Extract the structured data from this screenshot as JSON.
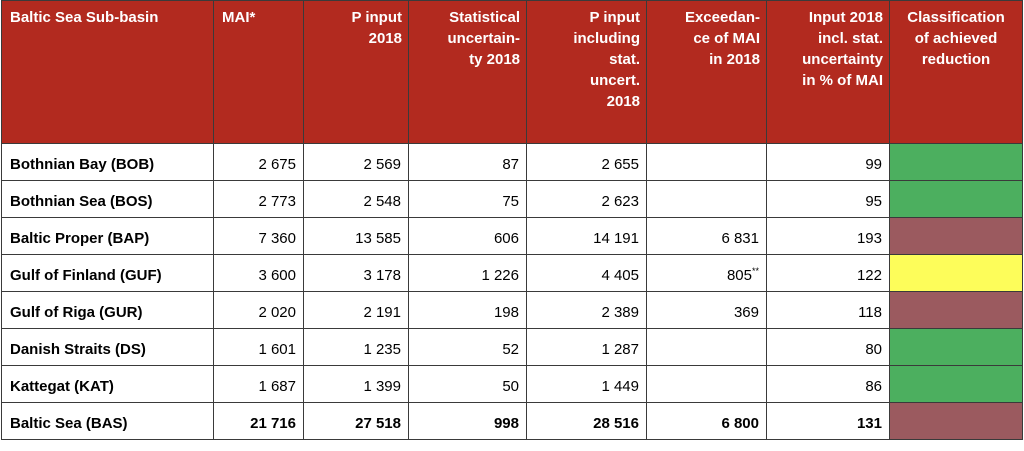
{
  "headers": {
    "subbasin": "Baltic Sea Sub-basin",
    "mai": "MAI*",
    "p_input_l1": "P input",
    "p_input_l2": "2018",
    "stat_l1": "Statistical",
    "stat_l2": "uncertain-",
    "stat_l3": "ty 2018",
    "pinc_l1": "P input",
    "pinc_l2": "including",
    "pinc_l3": "stat.",
    "pinc_l4": "uncert.",
    "pinc_l5": "2018",
    "exc_l1": "Exceedan-",
    "exc_l2": "ce of  MAI",
    "exc_l3": "in 2018",
    "pct_l1": "Input 2018",
    "pct_l2": "incl. stat.",
    "pct_l3": "uncertainty",
    "pct_l4": "in % of MAI",
    "cls_l1": "Classification",
    "cls_l2": "of achieved",
    "cls_l3": "reduction"
  },
  "colors": {
    "header_bg": "#b22a1f",
    "green": "#4caf5f",
    "red": "#9b5a5f",
    "yellow": "#fdfd5a"
  },
  "rows": [
    {
      "name": "Bothnian Bay (BOB)",
      "mai": "2 675",
      "p_input": "2 569",
      "stat": "87",
      "p_incl": "2 655",
      "exceed": "",
      "exceed_note": "",
      "pct": "99",
      "class_color": "#4caf5f"
    },
    {
      "name": "Bothnian Sea (BOS)",
      "mai": "2 773",
      "p_input": "2 548",
      "stat": "75",
      "p_incl": "2 623",
      "exceed": "",
      "exceed_note": "",
      "pct": "95",
      "class_color": "#4caf5f"
    },
    {
      "name": "Baltic Proper (BAP)",
      "mai": "7 360",
      "p_input": "13 585",
      "stat": "606",
      "p_incl": "14 191",
      "exceed": "6 831",
      "exceed_note": "",
      "pct": "193",
      "class_color": "#9b5a5f"
    },
    {
      "name": "Gulf of Finland (GUF)",
      "mai": "3 600",
      "p_input": "3 178",
      "stat": "1 226",
      "p_incl": "4 405",
      "exceed": "805",
      "exceed_note": "**",
      "pct": "122",
      "class_color": "#fdfd5a"
    },
    {
      "name": "Gulf of Riga (GUR)",
      "mai": "2 020",
      "p_input": "2  191",
      "stat": "198",
      "p_incl": "2 389",
      "exceed": "369",
      "exceed_note": "",
      "pct": "118",
      "class_color": "#9b5a5f"
    },
    {
      "name": "Danish Straits (DS)",
      "mai": "1 601",
      "p_input": "1 235",
      "stat": "52",
      "p_incl": "1 287",
      "exceed": "",
      "exceed_note": "",
      "pct": "80",
      "class_color": "#4caf5f"
    },
    {
      "name": "Kattegat (KAT)",
      "mai": "1 687",
      "p_input": "1 399",
      "stat": "50",
      "p_incl": "1 449",
      "exceed": "",
      "exceed_note": "",
      "pct": "86",
      "class_color": "#4caf5f"
    },
    {
      "name": "Baltic Sea (BAS)",
      "mai": "21 716",
      "p_input": "27 518",
      "stat": "998",
      "p_incl": "28 516",
      "exceed": "6 800",
      "exceed_note": "",
      "pct": "131",
      "class_color": "#9b5a5f"
    }
  ]
}
